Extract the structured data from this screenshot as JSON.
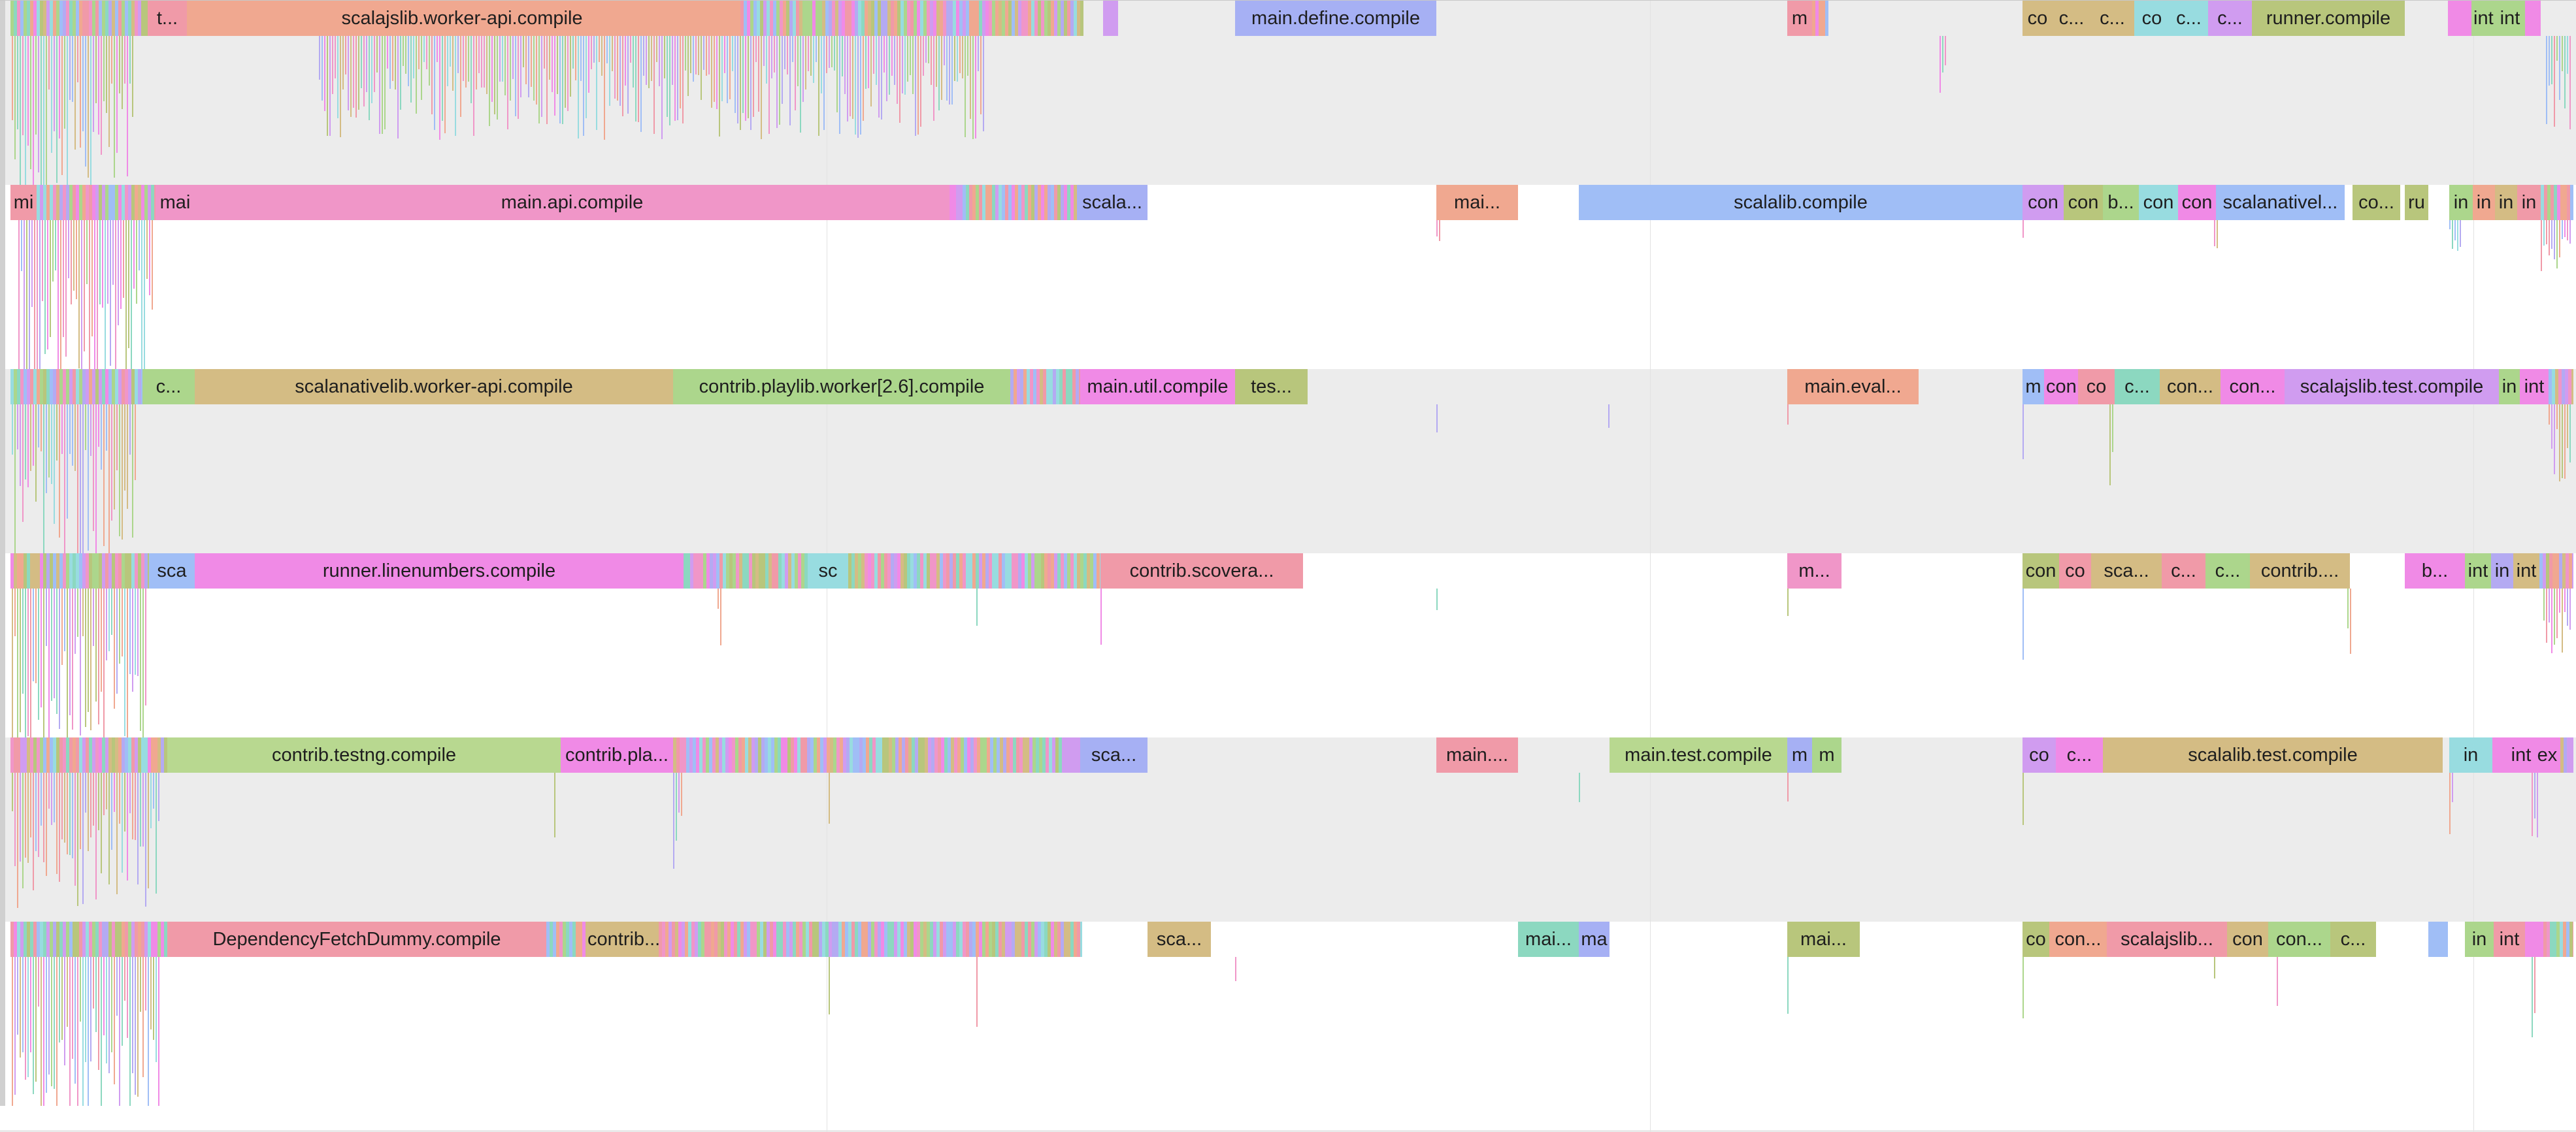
{
  "palette": [
    "#f0a890",
    "#f096c8",
    "#a0bef6",
    "#d4bc84",
    "#b8c67c",
    "#acd68c",
    "#8cd8c0",
    "#98dce0",
    "#b4aaf2",
    "#d09cf0",
    "#f08ae6",
    "#f09aa8"
  ],
  "rows": [
    {
      "shaded": true,
      "spans": [
        {
          "label": "t...",
          "start": 218,
          "end": 278,
          "color": "#f09aa8"
        },
        {
          "label": "scalajslib.worker-api.compile",
          "start": 278,
          "end": 1120,
          "color": "#f0a890"
        },
        {
          "label": "",
          "start": 1680,
          "end": 1703,
          "color": "#d09cf0"
        },
        {
          "label": "main.define.compile",
          "start": 1882,
          "end": 2190,
          "color": "#a6b0f4"
        },
        {
          "label": "m",
          "start": 2727,
          "end": 2765,
          "color": "#f09aa8"
        },
        {
          "label": "co",
          "start": 3087,
          "end": 3133,
          "color": "#d4bc84"
        },
        {
          "label": "c...",
          "start": 3133,
          "end": 3191,
          "color": "#d4bc84"
        },
        {
          "label": "c...",
          "start": 3191,
          "end": 3258,
          "color": "#d4bc84"
        },
        {
          "label": "co",
          "start": 3258,
          "end": 3312,
          "color": "#98dce0"
        },
        {
          "label": "c...",
          "start": 3312,
          "end": 3371,
          "color": "#98dce0"
        },
        {
          "label": "c...",
          "start": 3371,
          "end": 3438,
          "color": "#d09cf0"
        },
        {
          "label": "runner.compile",
          "start": 3438,
          "end": 3672,
          "color": "#b8c67c"
        },
        {
          "label": "",
          "start": 3738,
          "end": 3774,
          "color": "#f08ae6"
        },
        {
          "label": "int",
          "start": 3774,
          "end": 3810,
          "color": "#acd68c"
        },
        {
          "label": "int",
          "start": 3810,
          "end": 3856,
          "color": "#acd68c"
        },
        {
          "label": "",
          "start": 3856,
          "end": 3880,
          "color": "#f08ae6"
        }
      ],
      "clusters": [
        [
          8,
          218
        ],
        [
          1120,
          1650
        ],
        [
          2765,
          2790
        ]
      ],
      "below": [
        [
          10,
          200,
          270
        ],
        [
          480,
          1500,
          160
        ],
        [
          2960,
          2974,
          110
        ],
        [
          3888,
          3930,
          150
        ]
      ]
    },
    {
      "shaded": false,
      "spans": [
        {
          "label": "mi",
          "start": 8,
          "end": 48,
          "color": "#f09aa8"
        },
        {
          "label": "mai",
          "start": 230,
          "end": 290,
          "color": "#f096c8"
        },
        {
          "label": "main.api.compile",
          "start": 290,
          "end": 1445,
          "color": "#f096c8"
        },
        {
          "label": "scala...",
          "start": 1640,
          "end": 1748,
          "color": "#a6b0f4"
        },
        {
          "label": "mai...",
          "start": 2190,
          "end": 2315,
          "color": "#f0a890"
        },
        {
          "label": "scalalib.compile",
          "start": 2408,
          "end": 3087,
          "color": "#a0bef6"
        },
        {
          "label": "con",
          "start": 3087,
          "end": 3150,
          "color": "#d09cf0"
        },
        {
          "label": "con",
          "start": 3150,
          "end": 3210,
          "color": "#b8c67c"
        },
        {
          "label": "b...",
          "start": 3210,
          "end": 3265,
          "color": "#acd68c"
        },
        {
          "label": "con",
          "start": 3265,
          "end": 3325,
          "color": "#98dce0"
        },
        {
          "label": "con",
          "start": 3325,
          "end": 3383,
          "color": "#f08ae6"
        },
        {
          "label": "scalanativel...",
          "start": 3383,
          "end": 3580,
          "color": "#a0bef6"
        },
        {
          "label": "co...",
          "start": 3592,
          "end": 3665,
          "color": "#b8c67c"
        },
        {
          "label": "ru",
          "start": 3672,
          "end": 3708,
          "color": "#b8c67c"
        },
        {
          "label": "in",
          "start": 3740,
          "end": 3776,
          "color": "#acd68c"
        },
        {
          "label": "in",
          "start": 3776,
          "end": 3810,
          "color": "#f0a890"
        },
        {
          "label": "in",
          "start": 3810,
          "end": 3844,
          "color": "#d4bc84"
        },
        {
          "label": "in",
          "start": 3844,
          "end": 3880,
          "color": "#f09aa8"
        }
      ],
      "clusters": [
        [
          48,
          230
        ],
        [
          1445,
          1640
        ],
        [
          3880,
          3930
        ]
      ],
      "below": [
        [
          20,
          230,
          300
        ],
        [
          2190,
          2198,
          50
        ],
        [
          3087,
          3094,
          60
        ],
        [
          3380,
          3390,
          110
        ],
        [
          3740,
          3760,
          50
        ],
        [
          3880,
          3930,
          90
        ]
      ]
    },
    {
      "shaded": true,
      "spans": [
        {
          "label": "c...",
          "start": 210,
          "end": 290,
          "color": "#acd68c"
        },
        {
          "label": "scalanativelib.worker-api.compile",
          "start": 290,
          "end": 1022,
          "color": "#d4bc84"
        },
        {
          "label": "contrib.playlib.worker[2.6].compile",
          "start": 1022,
          "end": 1538,
          "color": "#acd68c"
        },
        {
          "label": "main.util.compile",
          "start": 1645,
          "end": 1882,
          "color": "#f08ae6"
        },
        {
          "label": "tes...",
          "start": 1882,
          "end": 1993,
          "color": "#b8c67c"
        },
        {
          "label": "main.eval...",
          "start": 2727,
          "end": 2928,
          "color": "#f0a890"
        },
        {
          "label": "m",
          "start": 3087,
          "end": 3120,
          "color": "#a0bef6"
        },
        {
          "label": "con",
          "start": 3120,
          "end": 3172,
          "color": "#f08ae6"
        },
        {
          "label": "co",
          "start": 3172,
          "end": 3228,
          "color": "#f09aa8"
        },
        {
          "label": "c...",
          "start": 3228,
          "end": 3297,
          "color": "#8cd8c0"
        },
        {
          "label": "con...",
          "start": 3297,
          "end": 3390,
          "color": "#d4bc84"
        },
        {
          "label": "con...",
          "start": 3390,
          "end": 3488,
          "color": "#f08ae6"
        },
        {
          "label": "scalajslib.test.compile",
          "start": 3488,
          "end": 3816,
          "color": "#d09cf0"
        },
        {
          "label": "in",
          "start": 3816,
          "end": 3848,
          "color": "#acd68c"
        },
        {
          "label": "int",
          "start": 3848,
          "end": 3892,
          "color": "#f08ae6"
        }
      ],
      "clusters": [
        [
          8,
          210
        ],
        [
          1538,
          1645
        ],
        [
          3892,
          3930
        ]
      ],
      "below": [
        [
          10,
          205,
          260
        ],
        [
          2190,
          2196,
          50
        ],
        [
          2453,
          2458,
          50
        ],
        [
          2727,
          2734,
          60
        ],
        [
          3087,
          3094,
          160
        ],
        [
          3220,
          3228,
          220
        ],
        [
          3892,
          3930,
          120
        ]
      ]
    },
    {
      "shaded": false,
      "spans": [
        {
          "label": "sca",
          "start": 220,
          "end": 290,
          "color": "#a0bef6"
        },
        {
          "label": "runner.linenumbers.compile",
          "start": 290,
          "end": 1038,
          "color": "#f08ae6"
        },
        {
          "label": "sc",
          "start": 1228,
          "end": 1290,
          "color": "#98dce0"
        },
        {
          "label": "contrib.scovera...",
          "start": 1676,
          "end": 1986,
          "color": "#f09aa8"
        },
        {
          "label": "m...",
          "start": 2727,
          "end": 2810,
          "color": "#f096c8"
        },
        {
          "label": "con",
          "start": 3087,
          "end": 3143,
          "color": "#b8c67c"
        },
        {
          "label": "co",
          "start": 3143,
          "end": 3192,
          "color": "#f09aa8"
        },
        {
          "label": "sca...",
          "start": 3192,
          "end": 3300,
          "color": "#d4bc84"
        },
        {
          "label": "c...",
          "start": 3300,
          "end": 3367,
          "color": "#f09aa8"
        },
        {
          "label": "c...",
          "start": 3367,
          "end": 3435,
          "color": "#acd68c"
        },
        {
          "label": "contrib....",
          "start": 3435,
          "end": 3588,
          "color": "#d4bc84"
        },
        {
          "label": "b...",
          "start": 3672,
          "end": 3764,
          "color": "#f08ae6"
        },
        {
          "label": "int",
          "start": 3764,
          "end": 3804,
          "color": "#acd68c"
        },
        {
          "label": "in",
          "start": 3804,
          "end": 3838,
          "color": "#b4aaf2"
        },
        {
          "label": "int",
          "start": 3838,
          "end": 3878,
          "color": "#d4bc84"
        }
      ],
      "clusters": [
        [
          8,
          220
        ],
        [
          1038,
          1228
        ],
        [
          1290,
          1676
        ],
        [
          3878,
          3930
        ]
      ],
      "below": [
        [
          10,
          220,
          260
        ],
        [
          1090,
          1100,
          100
        ],
        [
          1486,
          1492,
          110
        ],
        [
          1676,
          1682,
          110
        ],
        [
          2190,
          2196,
          50
        ],
        [
          2727,
          2734,
          160
        ],
        [
          3087,
          3094,
          110
        ],
        [
          3584,
          3592,
          110
        ],
        [
          3884,
          3930,
          110
        ]
      ]
    },
    {
      "shaded": true,
      "spans": [
        {
          "label": "contrib.testng.compile",
          "start": 248,
          "end": 850,
          "color": "#b8d890"
        },
        {
          "label": "contrib.pla...",
          "start": 850,
          "end": 1022,
          "color": "#f08ae6"
        },
        {
          "label": "sca...",
          "start": 1645,
          "end": 1748,
          "color": "#a6b0f4"
        },
        {
          "label": "main....",
          "start": 2190,
          "end": 2315,
          "color": "#f09aa8"
        },
        {
          "label": "main.test.compile",
          "start": 2455,
          "end": 2727,
          "color": "#b8d890"
        },
        {
          "label": "m",
          "start": 2727,
          "end": 2765,
          "color": "#a6b0f4"
        },
        {
          "label": "m",
          "start": 2765,
          "end": 2810,
          "color": "#acd68c"
        },
        {
          "label": "co",
          "start": 3087,
          "end": 3138,
          "color": "#d09cf0"
        },
        {
          "label": "c...",
          "start": 3138,
          "end": 3210,
          "color": "#f08ae6"
        },
        {
          "label": "scalalib.test.compile",
          "start": 3210,
          "end": 3730,
          "color": "#d4bc84"
        },
        {
          "label": "in",
          "start": 3740,
          "end": 3806,
          "color": "#98dce0"
        },
        {
          "label": "",
          "start": 3806,
          "end": 3830,
          "color": "#f08ae6"
        },
        {
          "label": "int",
          "start": 3830,
          "end": 3870,
          "color": "#f08ae6"
        },
        {
          "label": "ex",
          "start": 3870,
          "end": 3910,
          "color": "#f08ae6"
        }
      ],
      "clusters": [
        [
          8,
          248
        ],
        [
          1022,
          1645
        ],
        [
          3910,
          3930
        ]
      ],
      "below": [
        [
          10,
          240,
          220
        ],
        [
          840,
          846,
          210
        ],
        [
          1022,
          1040,
          170
        ],
        [
          1260,
          1266,
          110
        ],
        [
          2408,
          2414,
          50
        ],
        [
          2727,
          2734,
          110
        ],
        [
          3087,
          3094,
          90
        ],
        [
          3740,
          3750,
          110
        ],
        [
          3866,
          3880,
          150
        ]
      ]
    },
    {
      "shaded": false,
      "spans": [
        {
          "label": "DependencyFetchDummy.compile",
          "start": 248,
          "end": 828,
          "color": "#f09aa8"
        },
        {
          "label": "contrib...",
          "start": 888,
          "end": 1000,
          "color": "#d4bc84"
        },
        {
          "label": "sca...",
          "start": 1748,
          "end": 1845,
          "color": "#d4bc84"
        },
        {
          "label": "mai...",
          "start": 2315,
          "end": 2408,
          "color": "#8cd8c0"
        },
        {
          "label": "ma",
          "start": 2408,
          "end": 2455,
          "color": "#a6b0f4"
        },
        {
          "label": "mai...",
          "start": 2727,
          "end": 2838,
          "color": "#b8c67c"
        },
        {
          "label": "co",
          "start": 3087,
          "end": 3128,
          "color": "#b8c67c"
        },
        {
          "label": "con...",
          "start": 3128,
          "end": 3216,
          "color": "#f0a890"
        },
        {
          "label": "scalajslib...",
          "start": 3216,
          "end": 3400,
          "color": "#f09aa8"
        },
        {
          "label": "con",
          "start": 3400,
          "end": 3463,
          "color": "#d4bc84"
        },
        {
          "label": "con...",
          "start": 3463,
          "end": 3558,
          "color": "#acd68c"
        },
        {
          "label": "c...",
          "start": 3558,
          "end": 3628,
          "color": "#b8c67c"
        },
        {
          "label": "",
          "start": 3708,
          "end": 3738,
          "color": "#a0bef6"
        },
        {
          "label": "in",
          "start": 3764,
          "end": 3808,
          "color": "#acd68c"
        },
        {
          "label": "int",
          "start": 3808,
          "end": 3856,
          "color": "#f09aa8"
        },
        {
          "label": "",
          "start": 3856,
          "end": 3884,
          "color": "#f08ae6"
        }
      ],
      "clusters": [
        [
          8,
          248
        ],
        [
          828,
          888
        ],
        [
          1000,
          1648
        ],
        [
          3884,
          3930
        ]
      ],
      "below": [
        [
          10,
          238,
          270
        ],
        [
          1260,
          1266,
          110
        ],
        [
          1486,
          1492,
          110
        ],
        [
          1882,
          1888,
          110
        ],
        [
          2727,
          2734,
          110
        ],
        [
          3087,
          3094,
          110
        ],
        [
          3380,
          3386,
          110
        ],
        [
          3476,
          3482,
          110
        ],
        [
          3866,
          3874,
          260
        ]
      ]
    }
  ]
}
